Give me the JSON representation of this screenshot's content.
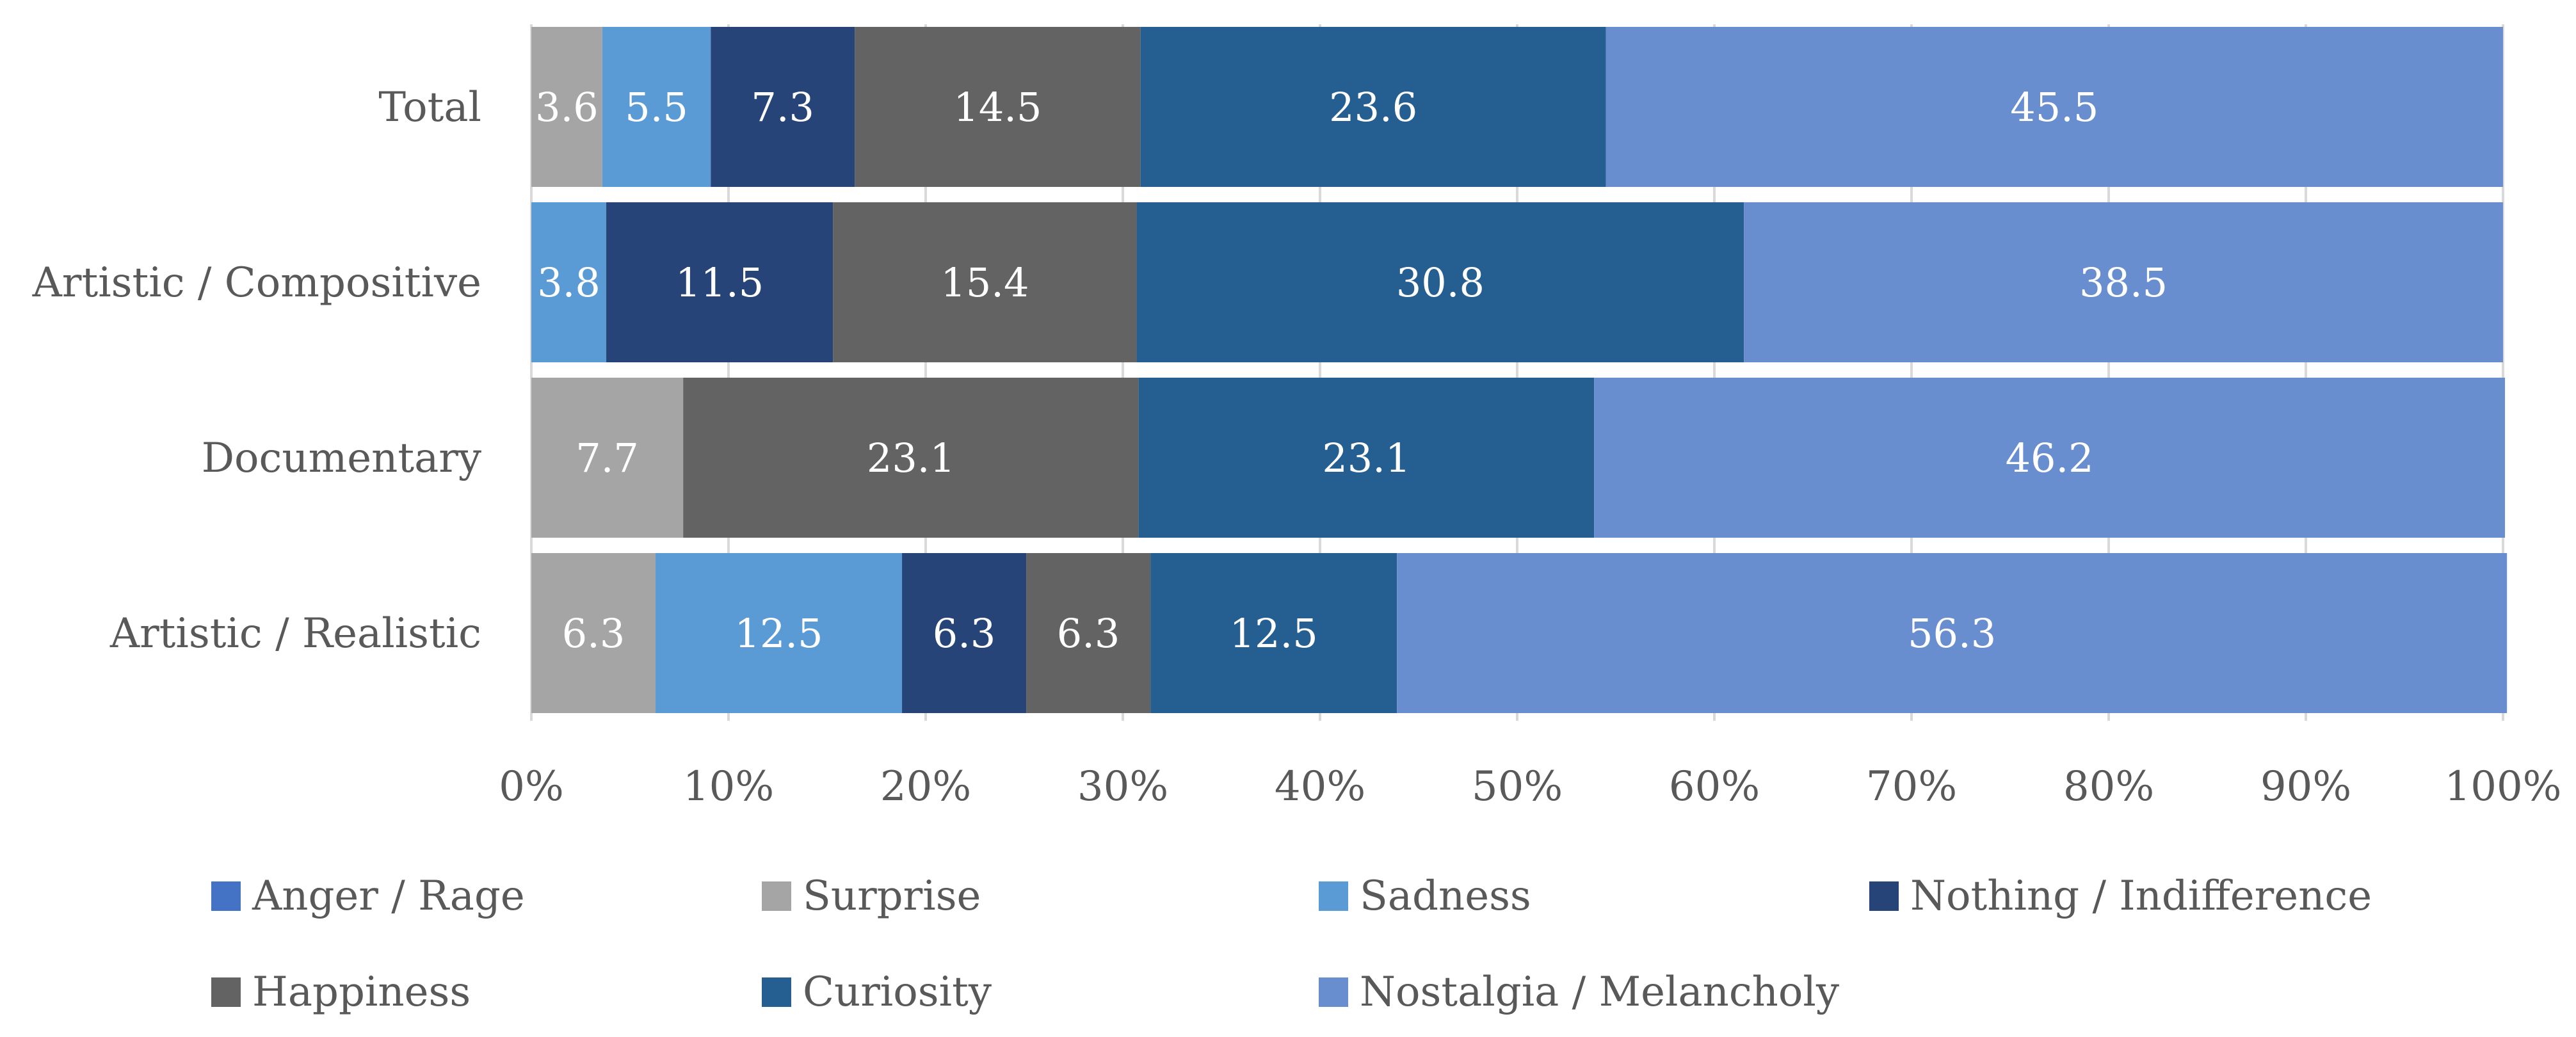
{
  "chart_data": {
    "type": "bar",
    "orientation": "horizontal",
    "stacked": "percent",
    "categories": [
      "Total",
      "Artistic / Compositive",
      "Documentary",
      "Artistic / Realistic"
    ],
    "x_ticks": [
      "0%",
      "10%",
      "20%",
      "30%",
      "40%",
      "50%",
      "60%",
      "70%",
      "80%",
      "90%",
      "100%"
    ],
    "xlim": [
      0,
      100
    ],
    "grid": true,
    "legend_position": "bottom",
    "series": [
      {
        "name": "Anger / Rage",
        "color": "#4472C4",
        "values": [
          0,
          0,
          0,
          0
        ],
        "labels": [
          "",
          "",
          "",
          ""
        ]
      },
      {
        "name": "Surprise",
        "color": "#A5A5A5",
        "values": [
          3.6,
          0,
          7.7,
          6.3
        ],
        "labels": [
          "3.6",
          "",
          "7.7",
          "6.3"
        ]
      },
      {
        "name": "Sadness",
        "color": "#5B9BD5",
        "values": [
          5.5,
          3.8,
          0,
          12.5
        ],
        "labels": [
          "5.5",
          "3.8",
          "",
          "12.5"
        ]
      },
      {
        "name": "Nothing / Indifference",
        "color": "#264478",
        "values": [
          7.3,
          11.5,
          0,
          6.3
        ],
        "labels": [
          "7.3",
          "11.5",
          "",
          "6.3"
        ]
      },
      {
        "name": "Happiness",
        "color": "#636363",
        "values": [
          14.5,
          15.4,
          23.1,
          6.3
        ],
        "labels": [
          "14.5",
          "15.4",
          "23.1",
          "6.3"
        ]
      },
      {
        "name": "Curiosity",
        "color": "#255E91",
        "values": [
          23.6,
          30.8,
          23.1,
          12.5
        ],
        "labels": [
          "23.6",
          "30.8",
          "23.1",
          "12.5"
        ]
      },
      {
        "name": "Nostalgia / Melancholy",
        "color": "#698ED0",
        "values": [
          45.5,
          38.5,
          46.2,
          56.3
        ],
        "labels": [
          "45.5",
          "38.5",
          "46.2",
          "56.3"
        ]
      }
    ]
  }
}
